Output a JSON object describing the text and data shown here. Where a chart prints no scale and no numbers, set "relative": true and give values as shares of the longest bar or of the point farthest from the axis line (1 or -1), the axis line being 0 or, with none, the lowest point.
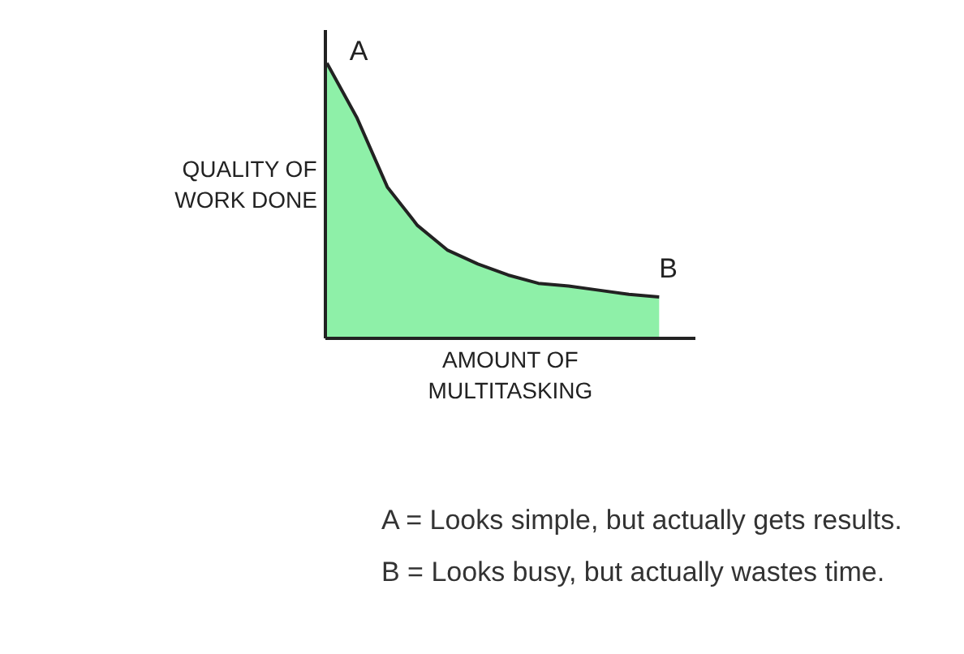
{
  "chart_data": {
    "type": "area",
    "relative": true,
    "xlabel": "AMOUNT OF\nMULTITASKING",
    "ylabel": "QUALITY OF\nWORK DONE",
    "categories": [
      null,
      null,
      null,
      null,
      null,
      null,
      null,
      null,
      null,
      null,
      null,
      null
    ],
    "series": [
      {
        "color": "#8ef0a8",
        "values": [
          1.0,
          0.8,
          0.55,
          0.41,
          0.32,
          0.27,
          0.23,
          0.2,
          0.19,
          0.175,
          0.16,
          0.15
        ]
      }
    ],
    "annotations": [
      "A",
      "B",
      "A = Looks simple, but actually gets results.",
      "B = Looks busy, but actually wastes time."
    ]
  }
}
